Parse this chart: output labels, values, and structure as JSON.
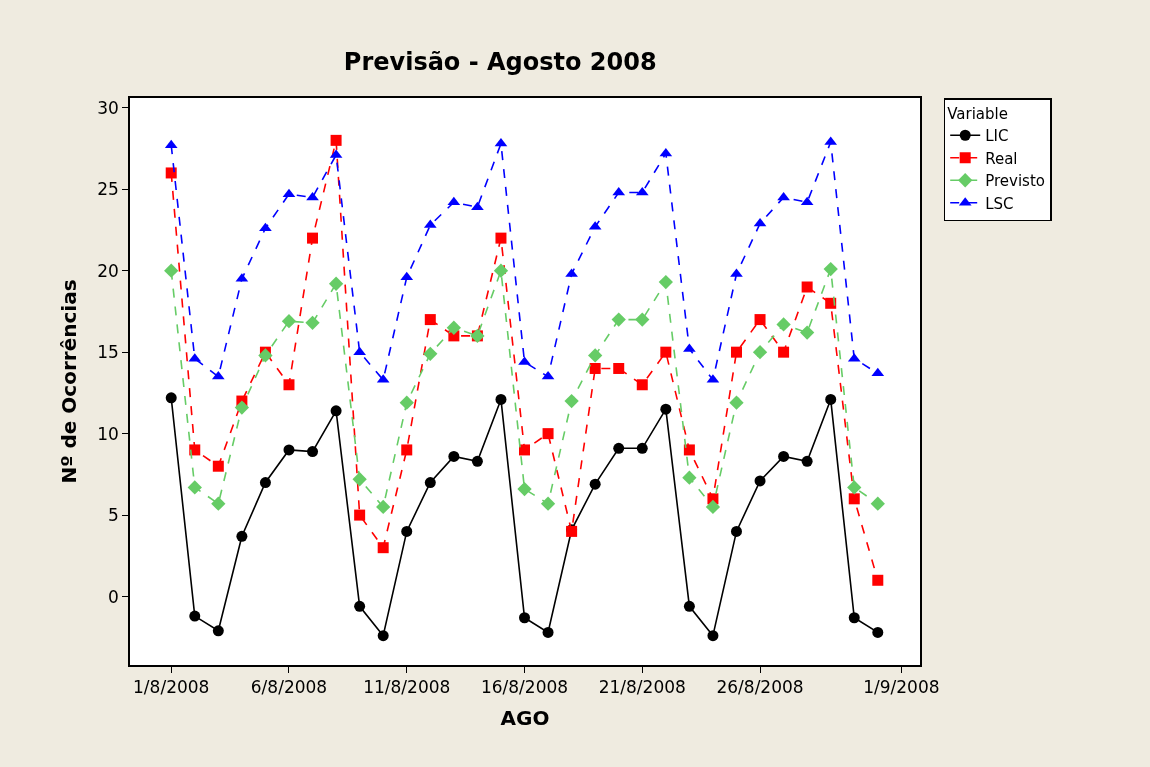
{
  "chart_data": {
    "type": "line",
    "title": "Previsão - Agosto 2008",
    "xlabel": "AGO",
    "ylabel": "Nº de Ocorrências",
    "legend_title": "Variable",
    "legend": "top right",
    "x": [
      "2008-08-01",
      "2008-08-02",
      "2008-08-03",
      "2008-08-04",
      "2008-08-05",
      "2008-08-06",
      "2008-08-07",
      "2008-08-08",
      "2008-08-09",
      "2008-08-10",
      "2008-08-11",
      "2008-08-12",
      "2008-08-13",
      "2008-08-14",
      "2008-08-15",
      "2008-08-16",
      "2008-08-17",
      "2008-08-18",
      "2008-08-19",
      "2008-08-20",
      "2008-08-21",
      "2008-08-22",
      "2008-08-23",
      "2008-08-24",
      "2008-08-25",
      "2008-08-26",
      "2008-08-27",
      "2008-08-28",
      "2008-08-29",
      "2008-08-30",
      "2008-08-31"
    ],
    "xlim": [
      "2008-07-30T06:00",
      "2008-09-01T19:00"
    ],
    "xticks": [
      {
        "value": "2008-08-01",
        "label": "1/8/2008"
      },
      {
        "value": "2008-08-06",
        "label": "6/8/2008"
      },
      {
        "value": "2008-08-11",
        "label": "11/8/2008"
      },
      {
        "value": "2008-08-16",
        "label": "16/8/2008"
      },
      {
        "value": "2008-08-21",
        "label": "21/8/2008"
      },
      {
        "value": "2008-08-26",
        "label": "26/8/2008"
      },
      {
        "value": "2008-09-01",
        "label": "1/9/2008"
      }
    ],
    "ylim": [
      -4.2,
      30.6
    ],
    "yticks": [
      0,
      5,
      10,
      15,
      20,
      25,
      30
    ],
    "series": [
      {
        "name": "LIC",
        "color": "#000000",
        "marker": "circle",
        "line_style": "solid",
        "values": [
          12.2,
          -1.2,
          -2.1,
          3.7,
          7.0,
          9.0,
          8.9,
          11.4,
          -0.6,
          -2.4,
          4.0,
          7.0,
          8.6,
          8.3,
          12.1,
          -1.3,
          -2.2,
          4.1,
          6.9,
          9.1,
          9.1,
          11.5,
          -0.6,
          -2.4,
          4.0,
          7.1,
          8.6,
          8.3,
          12.1,
          -1.3,
          -2.2
        ]
      },
      {
        "name": "Real",
        "color": "#ff0000",
        "marker": "square",
        "line_style": "dashed",
        "values": [
          26,
          9,
          8,
          12,
          15,
          13,
          22,
          28,
          5,
          3,
          9,
          17,
          16,
          16,
          22,
          9,
          10,
          4,
          14,
          14,
          13,
          15,
          9,
          6,
          15,
          17,
          15,
          19,
          18,
          6,
          1
        ]
      },
      {
        "name": "Previsto",
        "color": "#66cc66",
        "marker": "diamond",
        "line_style": "dashed",
        "values": [
          20.0,
          6.7,
          5.7,
          11.6,
          14.8,
          16.9,
          16.8,
          19.2,
          7.2,
          5.5,
          11.9,
          14.9,
          16.5,
          16.0,
          20.0,
          6.6,
          5.7,
          12.0,
          14.8,
          17.0,
          17.0,
          19.3,
          7.3,
          5.5,
          11.9,
          15.0,
          16.7,
          16.2,
          20.1,
          6.7,
          5.7
        ]
      },
      {
        "name": "LSC",
        "color": "#0000ff",
        "marker": "triangle",
        "line_style": "dashed",
        "values": [
          27.7,
          14.6,
          13.5,
          19.5,
          22.6,
          24.7,
          24.5,
          27.1,
          15.0,
          13.3,
          19.6,
          22.8,
          24.2,
          23.9,
          27.8,
          14.4,
          13.5,
          19.8,
          22.7,
          24.8,
          24.8,
          27.2,
          15.2,
          13.3,
          19.8,
          22.9,
          24.5,
          24.2,
          27.9,
          14.6,
          13.7
        ]
      }
    ]
  }
}
